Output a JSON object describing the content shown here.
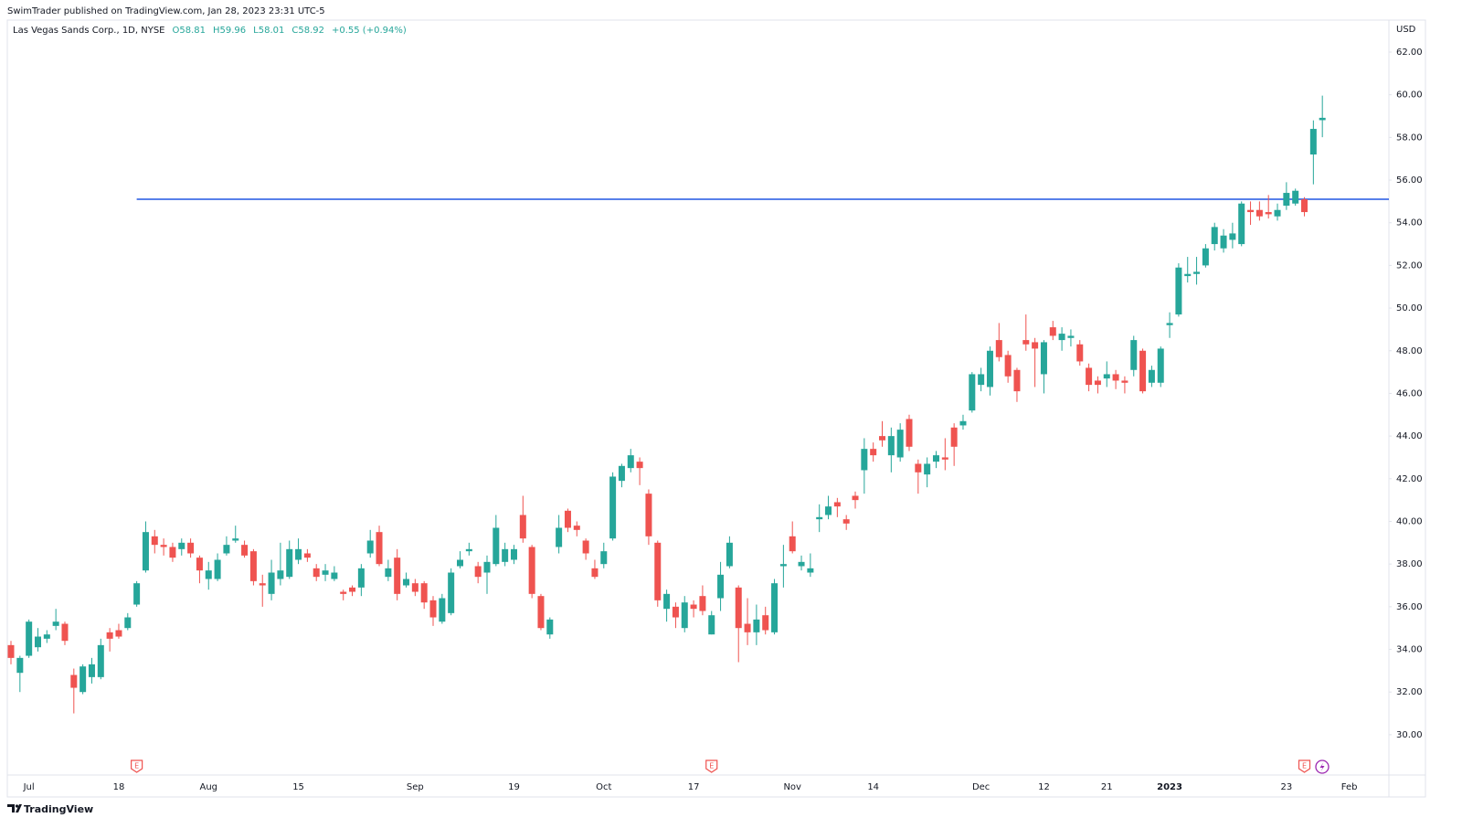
{
  "header": "SwimTrader published on TradingView.com, Jan 28, 2023 23:31 UTC-5",
  "footer": "TradingView",
  "chart_data": {
    "type": "candlestick",
    "legend": {
      "symbol": "Las Vegas Sands Corp., 1D, NYSE",
      "values": [
        "O58.81",
        "H59.96",
        "L58.01",
        "C58.92",
        "+0.55 (+0.94%)"
      ]
    },
    "currency": "USD",
    "up_color": "#26a69a",
    "down_color": "#ef5350",
    "categories": [
      null,
      null,
      "Jul",
      null,
      null,
      null,
      null,
      null,
      null,
      null,
      null,
      null,
      "18",
      null,
      null,
      null,
      null,
      null,
      null,
      null,
      null,
      null,
      "Aug",
      null,
      null,
      null,
      null,
      null,
      null,
      null,
      null,
      null,
      "15",
      null,
      null,
      null,
      null,
      null,
      null,
      null,
      null,
      null,
      null,
      null,
      null,
      "Sep",
      null,
      null,
      null,
      null,
      null,
      null,
      null,
      null,
      null,
      null,
      "19",
      null,
      null,
      null,
      null,
      null,
      null,
      null,
      null,
      null,
      "Oct",
      null,
      null,
      null,
      null,
      null,
      null,
      null,
      null,
      null,
      "17",
      null,
      null,
      null,
      null,
      null,
      null,
      null,
      null,
      null,
      null,
      "Nov",
      null,
      null,
      null,
      null,
      null,
      null,
      null,
      null,
      "14",
      null,
      null,
      null,
      null,
      null,
      null,
      null,
      null,
      null,
      null,
      null,
      "Dec",
      null,
      null,
      null,
      null,
      null,
      null,
      "12",
      null,
      null,
      null,
      null,
      null,
      null,
      "21",
      null,
      null,
      null,
      null,
      null,
      null,
      "2023",
      null,
      null,
      null,
      null,
      null,
      null,
      null,
      null,
      null,
      null,
      null,
      null,
      "23",
      null,
      null,
      null,
      null,
      null,
      null,
      "Feb"
    ],
    "events": [
      null,
      null,
      null,
      null,
      null,
      null,
      null,
      null,
      null,
      null,
      null,
      null,
      null,
      null,
      "E",
      null,
      null,
      null,
      null,
      null,
      null,
      null,
      null,
      null,
      null,
      null,
      null,
      null,
      null,
      null,
      null,
      null,
      null,
      null,
      null,
      null,
      null,
      null,
      null,
      null,
      null,
      null,
      null,
      null,
      null,
      null,
      null,
      null,
      null,
      null,
      null,
      null,
      null,
      null,
      null,
      null,
      null,
      null,
      null,
      null,
      null,
      null,
      null,
      null,
      null,
      null,
      null,
      null,
      null,
      null,
      null,
      null,
      null,
      null,
      null,
      null,
      null,
      null,
      "E",
      null,
      null,
      null,
      null,
      null,
      null,
      null,
      null,
      null,
      null,
      null,
      null,
      null,
      null,
      null,
      null,
      null,
      null,
      null,
      null,
      null,
      null,
      null,
      null,
      null,
      null,
      null,
      null,
      null,
      null,
      null,
      null,
      null,
      null,
      null,
      null,
      null,
      null,
      null,
      null,
      null,
      null,
      null,
      null,
      null,
      null,
      null,
      null,
      null,
      null,
      null,
      null,
      null,
      null,
      null,
      null,
      null,
      null,
      null,
      null,
      null,
      null,
      null,
      null,
      null,
      "E",
      null,
      null,
      null,
      null,
      null
    ],
    "open": [
      34.2,
      32.9,
      33.7,
      34.1,
      34.5,
      35.1,
      35.2,
      32.8,
      32.0,
      32.7,
      32.7,
      34.8,
      34.9,
      35.0,
      36.1,
      37.7,
      39.3,
      38.9,
      38.8,
      38.7,
      39.0,
      38.3,
      37.3,
      37.3,
      38.5,
      39.1,
      38.9,
      38.6,
      37.1,
      36.6,
      37.3,
      37.4,
      38.2,
      38.5,
      37.8,
      37.5,
      37.3,
      36.7,
      36.9,
      36.9,
      38.5,
      39.5,
      37.4,
      38.3,
      37.0,
      37.1,
      37.1,
      36.3,
      35.3,
      35.7,
      37.9,
      38.6,
      37.9,
      37.6,
      38.0,
      38.1,
      38.2,
      40.3,
      38.8,
      36.5,
      34.7,
      38.8,
      40.5,
      39.8,
      39.1,
      37.8,
      38.0,
      39.2,
      41.9,
      42.5,
      42.8,
      41.3,
      39.0,
      35.9,
      36.0,
      35.0,
      36.1,
      36.5,
      34.7,
      36.4,
      37.9,
      36.9,
      35.2,
      34.8,
      35.6,
      34.8,
      37.9,
      39.3,
      37.9,
      37.6,
      40.1,
      40.3,
      40.9,
      40.1,
      41.2,
      42.4,
      43.4,
      44.0,
      43.1,
      43.0,
      44.8,
      42.7,
      42.2,
      42.8,
      43.0,
      44.4,
      44.5,
      45.2,
      46.4,
      46.3,
      48.5,
      47.8,
      47.1,
      48.5,
      48.4,
      46.9,
      49.1,
      48.5,
      48.6,
      48.3,
      47.2,
      46.6,
      46.7,
      46.9,
      46.6,
      47.1,
      48.0,
      46.5,
      46.5,
      49.2,
      49.7,
      51.5,
      51.6,
      52.0,
      53.0,
      52.8,
      53.2,
      53.0,
      54.6,
      54.6,
      54.5,
      54.3,
      54.8,
      54.9,
      55.1,
      57.2,
      58.81,
      null,
      null,
      null
    ],
    "high": [
      34.4,
      33.7,
      35.4,
      35.0,
      34.9,
      35.9,
      35.3,
      33.1,
      33.3,
      33.6,
      34.5,
      35.0,
      35.2,
      35.7,
      37.2,
      40.0,
      39.6,
      39.2,
      39.0,
      39.2,
      39.2,
      38.4,
      38.1,
      38.5,
      39.3,
      39.8,
      39.1,
      38.7,
      37.5,
      38.2,
      39.0,
      39.1,
      39.2,
      38.7,
      38.0,
      38.0,
      37.9,
      36.8,
      37.0,
      38.0,
      39.6,
      39.8,
      38.2,
      38.7,
      37.6,
      37.3,
      37.2,
      36.5,
      36.6,
      37.8,
      38.6,
      39.0,
      38.1,
      38.4,
      40.3,
      39.0,
      38.9,
      41.2,
      38.9,
      36.6,
      35.5,
      40.3,
      40.6,
      40.0,
      39.2,
      38.2,
      39.0,
      42.3,
      42.7,
      43.4,
      43.0,
      41.5,
      39.1,
      36.8,
      36.2,
      36.5,
      36.3,
      37.0,
      35.8,
      38.1,
      39.3,
      37.0,
      36.4,
      36.1,
      36.0,
      37.3,
      38.9,
      40.0,
      38.4,
      38.5,
      40.8,
      41.2,
      41.1,
      40.3,
      41.4,
      43.9,
      43.7,
      44.7,
      44.4,
      44.6,
      45.0,
      42.9,
      43.0,
      43.3,
      43.9,
      44.6,
      45.0,
      47.0,
      47.2,
      48.2,
      49.3,
      48.0,
      47.2,
      49.7,
      48.6,
      48.5,
      49.4,
      49.1,
      49.0,
      48.5,
      47.4,
      46.8,
      47.5,
      47.1,
      46.8,
      48.7,
      48.1,
      47.3,
      48.2,
      49.8,
      52.1,
      52.4,
      52.4,
      53.0,
      54.0,
      53.7,
      54.0,
      55.0,
      55.0,
      55.0,
      55.3,
      54.9,
      55.9,
      55.6,
      55.2,
      58.8,
      59.96,
      null,
      null,
      null
    ],
    "low": [
      33.3,
      32.0,
      33.6,
      33.9,
      34.3,
      34.9,
      34.2,
      31.0,
      31.9,
      32.4,
      32.6,
      33.9,
      34.5,
      34.9,
      36.0,
      37.6,
      38.5,
      38.4,
      38.1,
      38.4,
      38.3,
      37.1,
      36.8,
      37.2,
      38.4,
      39.0,
      38.3,
      37.0,
      36.0,
      36.3,
      37.0,
      37.3,
      38.0,
      38.1,
      37.2,
      37.2,
      37.2,
      36.3,
      36.5,
      36.5,
      38.3,
      37.9,
      37.2,
      36.3,
      36.9,
      36.5,
      35.9,
      35.1,
      35.2,
      35.6,
      37.8,
      38.4,
      37.1,
      36.6,
      37.9,
      37.9,
      38.0,
      39.0,
      36.4,
      34.9,
      34.5,
      38.5,
      39.5,
      39.3,
      38.2,
      37.3,
      37.8,
      39.1,
      41.6,
      42.3,
      41.7,
      38.9,
      36.0,
      35.3,
      35.0,
      34.8,
      35.5,
      35.6,
      34.7,
      35.8,
      37.8,
      33.4,
      34.2,
      34.2,
      34.7,
      34.7,
      36.9,
      38.5,
      37.7,
      37.4,
      39.5,
      40.1,
      40.2,
      39.6,
      40.6,
      41.3,
      42.8,
      43.5,
      42.3,
      42.8,
      43.3,
      41.3,
      41.6,
      42.5,
      42.4,
      42.6,
      44.3,
      45.1,
      46.1,
      45.9,
      47.5,
      46.5,
      45.6,
      48.0,
      46.3,
      46.0,
      48.5,
      48.0,
      48.2,
      47.3,
      46.1,
      46.0,
      46.3,
      46.2,
      46.0,
      46.8,
      46.0,
      46.3,
      46.3,
      48.6,
      49.6,
      51.2,
      51.1,
      51.9,
      52.7,
      52.6,
      52.8,
      52.9,
      53.9,
      54.1,
      54.2,
      54.1,
      54.6,
      54.8,
      54.3,
      55.8,
      58.01,
      null,
      null,
      null
    ],
    "close": [
      33.6,
      33.6,
      35.3,
      34.6,
      34.7,
      35.3,
      34.4,
      32.2,
      33.2,
      33.3,
      34.2,
      34.5,
      34.6,
      35.5,
      37.1,
      39.5,
      38.9,
      38.8,
      38.3,
      39.0,
      38.5,
      37.7,
      37.7,
      38.2,
      38.9,
      39.2,
      38.4,
      37.2,
      37.0,
      37.6,
      37.7,
      38.7,
      38.7,
      38.3,
      37.4,
      37.7,
      37.6,
      36.6,
      36.7,
      37.8,
      39.1,
      38.0,
      37.8,
      36.6,
      37.3,
      36.7,
      36.2,
      35.5,
      36.4,
      37.6,
      38.2,
      38.7,
      37.4,
      38.1,
      39.7,
      38.7,
      38.7,
      39.2,
      36.6,
      35.0,
      35.4,
      39.7,
      39.7,
      39.6,
      38.5,
      37.4,
      38.6,
      42.1,
      42.6,
      43.1,
      42.5,
      39.3,
      36.3,
      36.6,
      35.5,
      36.2,
      35.9,
      35.8,
      35.6,
      37.5,
      39.0,
      35.0,
      34.8,
      35.4,
      34.9,
      37.1,
      38.0,
      38.6,
      38.1,
      37.8,
      40.2,
      40.7,
      40.7,
      39.9,
      41.0,
      43.4,
      43.1,
      43.8,
      44.0,
      44.3,
      43.5,
      42.3,
      42.7,
      43.1,
      42.9,
      43.5,
      44.7,
      46.9,
      46.9,
      48.0,
      47.7,
      46.8,
      46.1,
      48.3,
      48.1,
      48.4,
      48.7,
      48.8,
      48.7,
      47.5,
      46.4,
      46.4,
      46.9,
      46.6,
      46.5,
      48.5,
      46.1,
      47.1,
      48.1,
      49.3,
      51.9,
      51.6,
      51.7,
      52.8,
      53.8,
      53.4,
      53.5,
      54.9,
      54.5,
      54.3,
      54.4,
      54.6,
      55.4,
      55.5,
      54.5,
      58.4,
      58.92,
      null,
      null,
      null
    ],
    "hline": {
      "value": 55.1,
      "color": "#2156e3"
    },
    "ylim": [
      28.11,
      63.5
    ],
    "yticks": [
      {
        "value": 30,
        "label": "30.00"
      },
      {
        "value": 32,
        "label": "32.00"
      },
      {
        "value": 34,
        "label": "34.00"
      },
      {
        "value": 36,
        "label": "36.00"
      },
      {
        "value": 38,
        "label": "38.00"
      },
      {
        "value": 40,
        "label": "40.00"
      },
      {
        "value": 42,
        "label": "42.00"
      },
      {
        "value": 44,
        "label": "44.00"
      },
      {
        "value": 46,
        "label": "46.00"
      },
      {
        "value": 48,
        "label": "48.00"
      },
      {
        "value": 50,
        "label": "50.00"
      },
      {
        "value": 52,
        "label": "52.00"
      },
      {
        "value": 54,
        "label": "54.00"
      },
      {
        "value": 56,
        "label": "56.00"
      },
      {
        "value": 58,
        "label": "58.00"
      },
      {
        "value": 60,
        "label": "60.00"
      },
      {
        "value": 62,
        "label": "62.00"
      }
    ]
  }
}
